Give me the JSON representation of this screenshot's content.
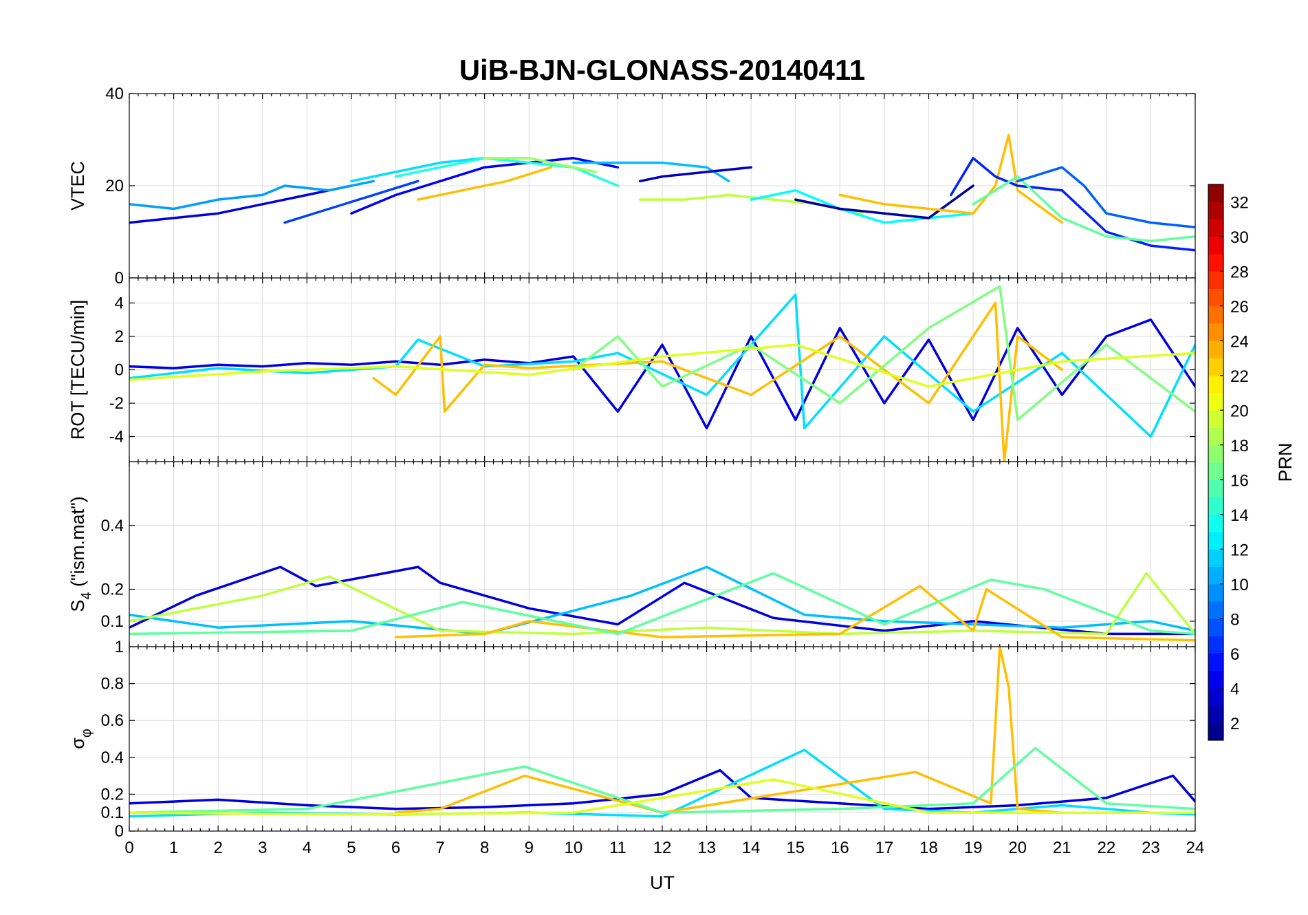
{
  "chart_data": {
    "type": "line",
    "title": "UiB-BJN-GLONASS-20140411",
    "xlabel": "UT",
    "xlim": [
      0,
      24
    ],
    "x_ticks": [
      "0",
      "1",
      "2",
      "3",
      "4",
      "5",
      "6",
      "7",
      "8",
      "9",
      "10",
      "11",
      "12",
      "13",
      "14",
      "15",
      "16",
      "17",
      "18",
      "19",
      "20",
      "21",
      "22",
      "23",
      "24"
    ],
    "colorbar": {
      "label": "PRN",
      "range": [
        1,
        33
      ],
      "ticks": [
        "2",
        "4",
        "6",
        "8",
        "10",
        "12",
        "14",
        "16",
        "18",
        "20",
        "22",
        "24",
        "26",
        "28",
        "30",
        "32"
      ],
      "colormap": "jet"
    },
    "panels": [
      {
        "id": "vtec",
        "ylabel": "VTEC",
        "ylim": [
          0,
          40
        ],
        "y_ticks": [
          0,
          20,
          40
        ],
        "y_tick_labels": [
          "0",
          "20",
          "40"
        ],
        "series": [
          {
            "prn": 4,
            "x": [
              0,
              1,
              2,
              3,
              4,
              5
            ],
            "y": [
              12,
              13,
              14,
              16,
              18,
              20
            ]
          },
          {
            "prn": 10,
            "x": [
              0,
              1,
              2,
              3,
              3.5,
              4.5,
              5.5
            ],
            "y": [
              16,
              15,
              17,
              18,
              20,
              19,
              21
            ]
          },
          {
            "prn": 12,
            "x": [
              5,
              6,
              7,
              8,
              9,
              10
            ],
            "y": [
              21,
              23,
              25,
              26,
              25,
              24
            ]
          },
          {
            "prn": 7,
            "x": [
              3.5,
              4.5,
              5.5,
              6.5
            ],
            "y": [
              12,
              15,
              18,
              21
            ]
          },
          {
            "prn": 5,
            "x": [
              5,
              6,
              7,
              8,
              9,
              10,
              11
            ],
            "y": [
              14,
              18,
              21,
              24,
              25,
              26,
              24
            ]
          },
          {
            "prn": 14,
            "x": [
              6,
              7,
              8,
              9,
              10,
              11
            ],
            "y": [
              22,
              24,
              26,
              25,
              24,
              20
            ]
          },
          {
            "prn": 23,
            "x": [
              6.5,
              7.5,
              8.5,
              9.5
            ],
            "y": [
              17,
              19,
              21,
              24
            ]
          },
          {
            "prn": 18,
            "x": [
              8,
              9,
              10,
              10.5
            ],
            "y": [
              26,
              26,
              24,
              23
            ]
          },
          {
            "prn": 11,
            "x": [
              10,
              11,
              12,
              13,
              13.5
            ],
            "y": [
              25,
              25,
              25,
              24,
              21
            ]
          },
          {
            "prn": 3,
            "x": [
              11.5,
              12,
              13,
              14
            ],
            "y": [
              21,
              22,
              23,
              24
            ]
          },
          {
            "prn": 19,
            "x": [
              11.5,
              12.5,
              13.5,
              14.5,
              15.5,
              16.5
            ],
            "y": [
              17,
              17,
              18,
              17,
              16,
              14
            ]
          },
          {
            "prn": 13,
            "x": [
              14,
              15,
              16,
              17,
              18,
              19
            ],
            "y": [
              17,
              19,
              15,
              12,
              13,
              14
            ]
          },
          {
            "prn": 2,
            "x": [
              15,
              16,
              17,
              18,
              19
            ],
            "y": [
              17,
              15,
              14,
              13,
              20
            ]
          },
          {
            "prn": 23,
            "x": [
              16,
              17,
              18,
              19,
              19.5,
              19.8,
              20,
              21
            ],
            "y": [
              18,
              16,
              15,
              14,
              20,
              31,
              19,
              12
            ]
          },
          {
            "prn": 6,
            "x": [
              18.5,
              19,
              19.5,
              20,
              21,
              22,
              23,
              24
            ],
            "y": [
              18,
              26,
              22,
              20,
              19,
              10,
              7,
              6
            ]
          },
          {
            "prn": 16,
            "x": [
              19,
              20,
              21,
              22,
              23,
              24
            ],
            "y": [
              16,
              22,
              13,
              9,
              8,
              9
            ]
          },
          {
            "prn": 8,
            "x": [
              20,
              21,
              21.5,
              22,
              23,
              24
            ],
            "y": [
              21,
              24,
              20,
              14,
              12,
              11
            ]
          }
        ]
      },
      {
        "id": "rot",
        "ylabel": "ROT [TECU/min]",
        "ylim": [
          -5.5,
          5.5
        ],
        "y_ticks": [
          -4,
          -2,
          0,
          2,
          4
        ],
        "y_tick_labels": [
          "-4",
          "-2",
          "0",
          "2",
          "4"
        ],
        "series": [
          {
            "prn": 4,
            "x": [
              0,
              1,
              2,
              3,
              4,
              5,
              6,
              7,
              8,
              9,
              10,
              11,
              12,
              13,
              14,
              15,
              16,
              17,
              18,
              19,
              20,
              21,
              22,
              23,
              24
            ],
            "y": [
              0.2,
              0.1,
              0.3,
              0.2,
              0.4,
              0.3,
              0.5,
              0.3,
              0.6,
              0.4,
              0.8,
              -2.5,
              1.5,
              -3.5,
              2.0,
              -3.0,
              2.5,
              -2.0,
              1.8,
              -3.0,
              2.5,
              -1.5,
              2.0,
              3.0,
              -1.0
            ]
          },
          {
            "prn": 12,
            "x": [
              0,
              2,
              4,
              6,
              6.5,
              8,
              10,
              11,
              13,
              15,
              15.2,
              17,
              19,
              21,
              23,
              24
            ],
            "y": [
              -0.5,
              0.1,
              -0.2,
              0.2,
              1.8,
              0.2,
              0.5,
              1.0,
              -1.5,
              4.5,
              -3.5,
              2.0,
              -2.5,
              1.0,
              -4.0,
              1.5
            ]
          },
          {
            "prn": 23,
            "x": [
              5.5,
              6,
              7,
              7.1,
              8,
              9,
              12,
              14,
              16,
              18,
              19.5,
              19.7,
              20,
              21
            ],
            "y": [
              -0.5,
              -1.5,
              2.0,
              -2.5,
              0.3,
              0.1,
              0.5,
              -1.5,
              2.0,
              -2.0,
              4.0,
              -5.5,
              2.0,
              0.0
            ]
          },
          {
            "prn": 17,
            "x": [
              10,
              11,
              12,
              14,
              16,
              18,
              19.6,
              20,
              22,
              24
            ],
            "y": [
              0.0,
              2.0,
              -1.0,
              1.5,
              -2.0,
              2.5,
              5.0,
              -3.0,
              1.5,
              -2.5
            ]
          },
          {
            "prn": 20,
            "x": [
              0,
              3,
              6,
              9,
              12,
              15,
              18,
              21,
              24
            ],
            "y": [
              -0.6,
              -0.1,
              0.2,
              -0.3,
              0.8,
              1.5,
              -1.0,
              0.5,
              1.0
            ]
          }
        ]
      },
      {
        "id": "s4",
        "ylabel": "S4 (\"ism.mat\")",
        "ylabel_main": "S",
        "ylabel_sub": "4",
        "ylabel_rest": " (\"ism.mat\")",
        "ylim": [
          0.02,
          0.6
        ],
        "y_ticks": [
          0.1,
          0.2,
          0.4
        ],
        "y_tick_labels": [
          "0.1",
          "0.2",
          "0.4"
        ],
        "series": [
          {
            "prn": 4,
            "x": [
              0,
              1.5,
              3.4,
              4.2,
              6.5,
              7,
              9,
              11,
              12.5,
              14.5,
              17,
              19,
              22,
              24
            ],
            "y": [
              0.08,
              0.18,
              0.27,
              0.21,
              0.27,
              0.22,
              0.14,
              0.09,
              0.22,
              0.11,
              0.07,
              0.1,
              0.06,
              0.06
            ]
          },
          {
            "prn": 11,
            "x": [
              0,
              2,
              5,
              8,
              11.3,
              13,
              15.2,
              17,
              19,
              21,
              23,
              24
            ],
            "y": [
              0.12,
              0.08,
              0.1,
              0.06,
              0.18,
              0.27,
              0.12,
              0.1,
              0.09,
              0.08,
              0.1,
              0.07
            ]
          },
          {
            "prn": 19,
            "x": [
              0,
              3,
              4.5,
              7,
              10,
              13,
              16,
              19,
              22,
              22.9,
              24
            ],
            "y": [
              0.1,
              0.18,
              0.24,
              0.07,
              0.06,
              0.08,
              0.06,
              0.07,
              0.06,
              0.25,
              0.06
            ]
          },
          {
            "prn": 23,
            "x": [
              6,
              8,
              9,
              12,
              16,
              17.8,
              19,
              19.3,
              21,
              24
            ],
            "y": [
              0.05,
              0.06,
              0.1,
              0.05,
              0.06,
              0.21,
              0.07,
              0.2,
              0.05,
              0.04
            ]
          },
          {
            "prn": 16,
            "x": [
              0,
              5,
              7.5,
              11,
              14.5,
              17,
              19.4,
              20.6,
              23,
              24
            ],
            "y": [
              0.06,
              0.07,
              0.16,
              0.06,
              0.25,
              0.09,
              0.23,
              0.2,
              0.07,
              0.06
            ]
          }
        ]
      },
      {
        "id": "sigma_phi",
        "ylabel": "σφ",
        "ylabel_main": "σ",
        "ylabel_sub": "φ",
        "ylim": [
          0,
          1
        ],
        "y_ticks": [
          0,
          0.1,
          0.2,
          0.4,
          0.6,
          0.8,
          1
        ],
        "y_tick_labels": [
          "0",
          "0.1",
          "0.2",
          "0.4",
          "0.6",
          "0.8",
          "1"
        ],
        "series": [
          {
            "prn": 4,
            "x": [
              0,
              2,
              4,
              6,
              8,
              10,
              12,
              13.3,
              14,
              16,
              18,
              20,
              22,
              23.5,
              24
            ],
            "y": [
              0.15,
              0.17,
              0.14,
              0.12,
              0.13,
              0.15,
              0.2,
              0.33,
              0.18,
              0.15,
              0.12,
              0.14,
              0.18,
              0.3,
              0.16
            ]
          },
          {
            "prn": 12,
            "x": [
              0,
              3,
              6,
              9,
              12,
              15.2,
              17,
              19,
              21,
              23,
              24
            ],
            "y": [
              0.08,
              0.1,
              0.09,
              0.1,
              0.08,
              0.44,
              0.12,
              0.1,
              0.14,
              0.1,
              0.09
            ]
          },
          {
            "prn": 23,
            "x": [
              6,
              7,
              8.9,
              12,
              17.7,
              19.4,
              19.6,
              19.8,
              20,
              21
            ],
            "y": [
              0.1,
              0.12,
              0.3,
              0.1,
              0.32,
              0.15,
              1.0,
              0.78,
              0.12,
              0.1
            ]
          },
          {
            "prn": 16,
            "x": [
              0,
              4,
              8.9,
              12,
              16,
              19,
              20.4,
              22,
              24
            ],
            "y": [
              0.1,
              0.12,
              0.35,
              0.1,
              0.12,
              0.15,
              0.45,
              0.15,
              0.12
            ]
          },
          {
            "prn": 20,
            "x": [
              0,
              5,
              10,
              14.5,
              18,
              22,
              24
            ],
            "y": [
              0.1,
              0.09,
              0.1,
              0.28,
              0.1,
              0.1,
              0.1
            ]
          }
        ]
      }
    ]
  }
}
